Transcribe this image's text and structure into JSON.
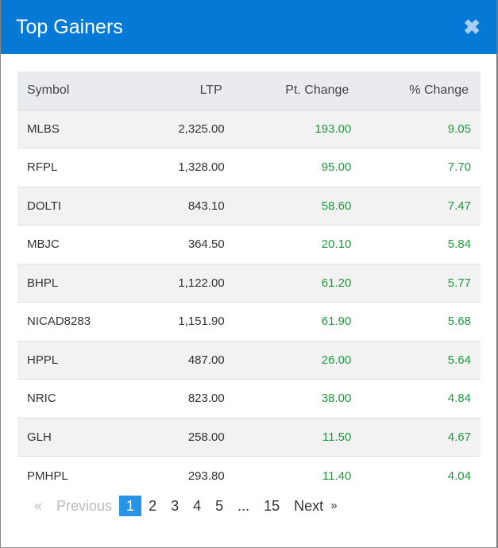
{
  "modal": {
    "title": "Top Gainers",
    "close_icon": "close-icon"
  },
  "table": {
    "headers": [
      "Symbol",
      "LTP",
      "Pt. Change",
      "% Change"
    ],
    "rows": [
      [
        "MLBS",
        "2,325.00",
        "193.00",
        "9.05"
      ],
      [
        "RFPL",
        "1,328.00",
        "95.00",
        "7.70"
      ],
      [
        "DOLTI",
        "843.10",
        "58.60",
        "7.47"
      ],
      [
        "MBJC",
        "364.50",
        "20.10",
        "5.84"
      ],
      [
        "BHPL",
        "1,122.00",
        "61.20",
        "5.77"
      ],
      [
        "NICAD8283",
        "1,151.90",
        "61.90",
        "5.68"
      ],
      [
        "HPPL",
        "487.00",
        "26.00",
        "5.64"
      ],
      [
        "NRIC",
        "823.00",
        "38.00",
        "4.84"
      ],
      [
        "GLH",
        "258.00",
        "11.50",
        "4.67"
      ],
      [
        "PMHPL",
        "293.80",
        "11.40",
        "4.04"
      ]
    ]
  },
  "pagination": {
    "prev_arrow": "«",
    "previous": "Previous",
    "pages": [
      "1",
      "2",
      "3",
      "4",
      "5",
      "...",
      "15"
    ],
    "active": "1",
    "next": "Next",
    "next_arrow": "»"
  },
  "colors": {
    "header": "#0479d6",
    "positive": "#1e9a3c",
    "active_page": "#2894e5"
  }
}
